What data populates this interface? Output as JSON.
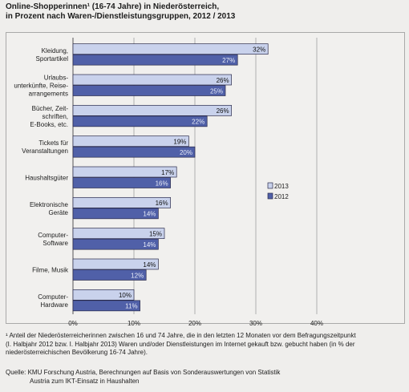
{
  "title_line1": "Online-Shopperinnen¹ (16-74 Jahre) in Niederösterreich,",
  "title_line2": "in Prozent nach Waren-/Dienstleistungsgruppen,  2012 / 2013",
  "chart_data": {
    "type": "bar",
    "orientation": "horizontal",
    "categories": [
      [
        "Kleidung,",
        "Sportartikel"
      ],
      [
        "Urlaubs-",
        "unterkünfte, Reise-",
        "arrangements"
      ],
      [
        "Bücher, Zeit-",
        "schriften,",
        "E-Books, etc."
      ],
      [
        "Tickets für",
        "Veranstaltungen"
      ],
      [
        "Haushaltsgüter"
      ],
      [
        "Elektronische",
        "Geräte"
      ],
      [
        "Computer-",
        "Software"
      ],
      [
        "Filme, Musik"
      ],
      [
        "Computer-",
        "Hardware"
      ]
    ],
    "series": [
      {
        "name": "2013",
        "values": [
          32,
          26,
          26,
          19,
          17,
          16,
          15,
          14,
          10
        ],
        "labels": [
          "32%",
          "26%",
          "26%",
          "19%",
          "17%",
          "16%",
          "15%",
          "14%",
          "10%"
        ],
        "color": "#c9d2ec"
      },
      {
        "name": "2012",
        "values": [
          27,
          25,
          22,
          20,
          16,
          14,
          14,
          12,
          11
        ],
        "labels": [
          "27%",
          "25%",
          "22%",
          "20%",
          "16%",
          "14%",
          "14%",
          "12%",
          "11%"
        ],
        "color": "#5060a8"
      }
    ],
    "xlim": [
      0,
      40
    ],
    "xticks": [
      "0%",
      "10%",
      "20%",
      "30%",
      "40%"
    ],
    "grid": true,
    "legend_position": "right"
  },
  "footnote_lines": [
    "¹ Anteil der Niederösterreicherinnen zwischen 16 und 74 Jahre, die in den letzten 12 Monaten vor dem Befragungszeitpunkt",
    "(I. Halbjahr 2012 bzw. I. Halbjahr 2013) Waren und/oder Dienstleistungen im Internet gekauft bzw. gebucht haben (in % der",
    "niederösterreichischen Bevölkerung 16-74 Jahre)."
  ],
  "source_line1": "Quelle:  KMU Forschung Austria, Berechnungen auf Basis von Sonderauswertungen von Statistik",
  "source_line2": "Austria zum IKT-Einsatz in Haushalten"
}
